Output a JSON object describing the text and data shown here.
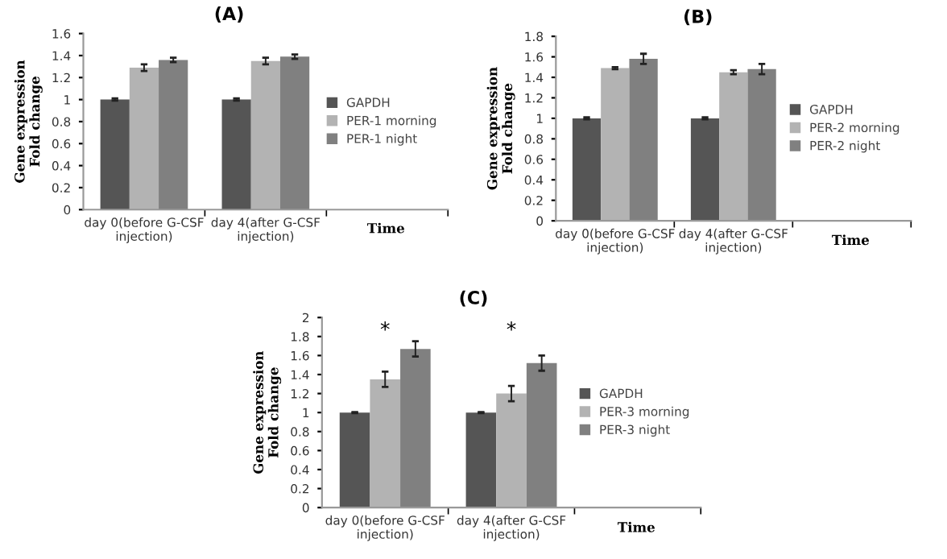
{
  "chart_data": [
    {
      "type": "bar",
      "title": "(A)",
      "xlabel": "Time",
      "ylabel": "Gene expression\nFold change",
      "categories": [
        "day 0(before G-CSF\ninjection)",
        "day 4(after G-CSF\ninjection)",
        null
      ],
      "ylim": [
        0,
        1.6
      ],
      "yticks": [
        0,
        0.2,
        0.4,
        0.6,
        0.8,
        1,
        1.2,
        1.4,
        1.6
      ],
      "grid": false,
      "legend": "right",
      "series": [
        {
          "name": "GAPDH",
          "color": "#555555",
          "values": [
            1,
            1,
            null
          ],
          "errors": [
            0.01,
            0.01,
            null
          ]
        },
        {
          "name": "PER-1 morning",
          "color": "#b3b3b3",
          "values": [
            1.29,
            1.35,
            null
          ],
          "errors": [
            0.03,
            0.03,
            null
          ]
        },
        {
          "name": "PER-1 night",
          "color": "#808080",
          "values": [
            1.36,
            1.39,
            null
          ],
          "errors": [
            0.02,
            0.02,
            null
          ]
        }
      ]
    },
    {
      "type": "bar",
      "title": "(B)",
      "xlabel": "Time",
      "ylabel": "Gene expression\nFold change",
      "categories": [
        "day 0(before G-CSF\ninjection)",
        "day 4(after G-CSF\ninjection)",
        null
      ],
      "ylim": [
        0,
        1.8
      ],
      "yticks": [
        0,
        0.2,
        0.4,
        0.6,
        0.8,
        1,
        1.2,
        1.4,
        1.6,
        1.8
      ],
      "grid": false,
      "legend": "right",
      "series": [
        {
          "name": "GAPDH",
          "color": "#555555",
          "values": [
            1,
            1,
            null
          ],
          "errors": [
            0.01,
            0.01,
            null
          ]
        },
        {
          "name": "PER-2 morning",
          "color": "#b3b3b3",
          "values": [
            1.49,
            1.45,
            null
          ],
          "errors": [
            0.01,
            0.02,
            null
          ]
        },
        {
          "name": "PER-2 night",
          "color": "#808080",
          "values": [
            1.58,
            1.48,
            null
          ],
          "errors": [
            0.05,
            0.05,
            null
          ]
        }
      ]
    },
    {
      "type": "bar",
      "title": "(C)",
      "xlabel": "Time",
      "ylabel": "Gene expression\nFold change",
      "categories": [
        "day 0(before G-CSF\ninjection)",
        "day 4(after G-CSF\ninjection)",
        null
      ],
      "ylim": [
        0,
        2
      ],
      "yticks": [
        0,
        0.2,
        0.4,
        0.6,
        0.8,
        1,
        1.2,
        1.4,
        1.6,
        1.8,
        2
      ],
      "grid": false,
      "legend": "right",
      "annotations": [
        "*",
        "*"
      ],
      "series": [
        {
          "name": "GAPDH",
          "color": "#555555",
          "values": [
            1,
            1,
            null
          ],
          "errors": [
            0.005,
            0.005,
            null
          ]
        },
        {
          "name": "PER-3 morning",
          "color": "#b3b3b3",
          "values": [
            1.35,
            1.2,
            null
          ],
          "errors": [
            0.08,
            0.08,
            null
          ]
        },
        {
          "name": "PER-3 night",
          "color": "#808080",
          "values": [
            1.67,
            1.52,
            null
          ],
          "errors": [
            0.08,
            0.08,
            null
          ]
        }
      ]
    }
  ]
}
